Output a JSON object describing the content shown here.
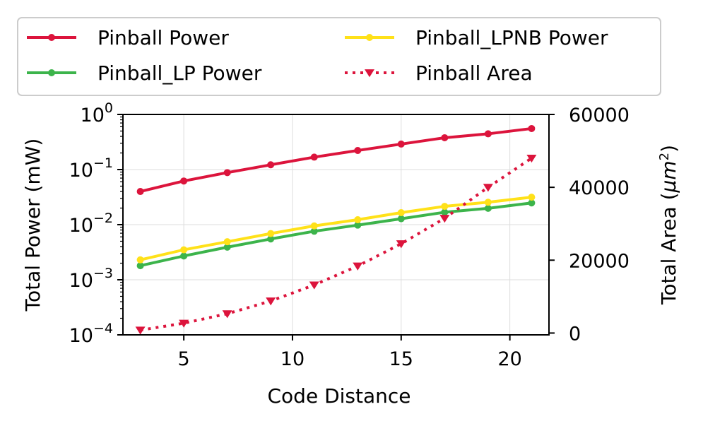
{
  "chart_data": {
    "type": "line",
    "title": "",
    "xlabel": "Code Distance",
    "ylabel_left": "Total Power (mW)",
    "ylabel_right_main": "Total Area (",
    "ylabel_right_mu": "μm",
    "ylabel_right_sup": "2",
    "ylabel_right_close": ")",
    "x": [
      3,
      5,
      7,
      9,
      11,
      13,
      15,
      17,
      19,
      21
    ],
    "xlim": [
      2.2,
      21.8
    ],
    "xticks": [
      5,
      10,
      15,
      20
    ],
    "yscale_left": "log",
    "ylim_left": [
      0.0001,
      1
    ],
    "yticks_left": [
      {
        "value": 1,
        "base": "10",
        "exp": "0"
      },
      {
        "value": 0.1,
        "base": "10",
        "exp": "−1"
      },
      {
        "value": 0.01,
        "base": "10",
        "exp": "−2"
      },
      {
        "value": 0.001,
        "base": "10",
        "exp": "−3"
      },
      {
        "value": 0.0001,
        "base": "10",
        "exp": "−4"
      }
    ],
    "ylim_right": [
      -500,
      60000
    ],
    "yticks_right": [
      0,
      20000,
      40000,
      60000
    ],
    "grid": true,
    "legend_position": "top",
    "series": [
      {
        "name": "Pinball Power",
        "axis": "left",
        "color": "#dc143c",
        "style": "solid",
        "marker": "circle",
        "values": [
          0.04,
          0.062,
          0.088,
          0.122,
          0.168,
          0.222,
          0.29,
          0.378,
          0.445,
          0.555
        ]
      },
      {
        "name": "Pinball_LP Power",
        "axis": "left",
        "color": "#3cb44b",
        "style": "solid",
        "marker": "circle",
        "values": [
          0.0018,
          0.0027,
          0.0039,
          0.0055,
          0.0076,
          0.0098,
          0.0128,
          0.0168,
          0.0198,
          0.0248
        ]
      },
      {
        "name": "Pinball_LPNB Power",
        "axis": "left",
        "color": "#ffe119",
        "style": "solid",
        "marker": "circle",
        "values": [
          0.0023,
          0.0035,
          0.0049,
          0.0069,
          0.0095,
          0.0123,
          0.0165,
          0.0215,
          0.0255,
          0.0315
        ]
      },
      {
        "name": "Pinball Area",
        "axis": "right",
        "color": "#dc143c",
        "style": "dotted",
        "marker": "triangle-down",
        "values": [
          800,
          2700,
          5300,
          8800,
          13200,
          18400,
          24500,
          31500,
          40000,
          48000
        ]
      }
    ]
  }
}
